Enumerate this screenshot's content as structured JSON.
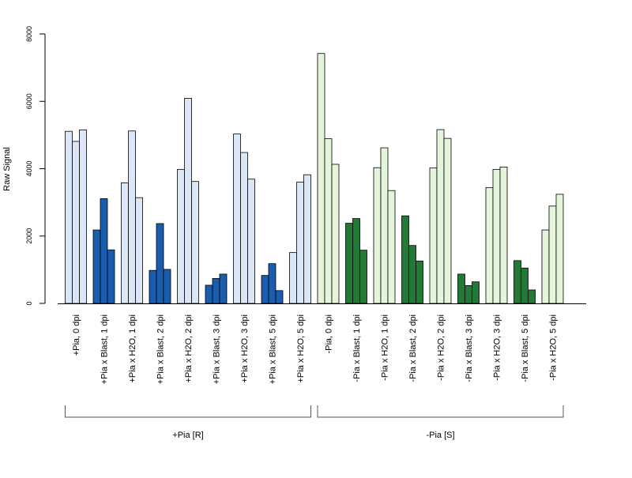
{
  "chart_data": {
    "type": "bar",
    "ylabel": "Raw Signal",
    "xlabel": "",
    "title": "",
    "ylim": [
      0,
      8000
    ],
    "y_ticks": [
      0,
      2000,
      4000,
      6000,
      8000
    ],
    "bars_per_category": 3,
    "categories": [
      "+Pia, 0 dpi",
      "+Pia x Blast, 1 dpi",
      "+Pia x H2O, 1 dpi",
      "+Pia x Blast, 2 dpi",
      "+Pia x H2O, 2 dpi",
      "+Pia x Blast, 3 dpi",
      "+Pia x H2O, 3 dpi",
      "+Pia x Blast, 5 dpi",
      "+Pia x H2O, 5 dpi",
      "-Pia, 0 dpi",
      "-Pia x Blast, 1 dpi",
      "-Pia x H2O, 1 dpi",
      "-Pia x Blast, 2 dpi",
      "-Pia x H2O, 2 dpi",
      "-Pia x Blast, 3 dpi",
      "-Pia x H2O, 3 dpi",
      "-Pia x Blast, 5 dpi",
      "-Pia x H2O, 5 dpi"
    ],
    "values": [
      [
        5110,
        4810,
        5150
      ],
      [
        2180,
        3110,
        1590
      ],
      [
        3580,
        5120,
        3140
      ],
      [
        980,
        2370,
        1010
      ],
      [
        3980,
        6090,
        3620
      ],
      [
        540,
        740,
        870
      ],
      [
        5030,
        4480,
        3690
      ],
      [
        830,
        1180,
        380
      ],
      [
        1510,
        3600,
        3820
      ],
      [
        7420,
        4890,
        4130
      ],
      [
        2380,
        2520,
        1580
      ],
      [
        4030,
        4620,
        3350
      ],
      [
        2600,
        1720,
        1260
      ],
      [
        4020,
        5160,
        4900
      ],
      [
        870,
        530,
        640
      ],
      [
        3440,
        3980,
        4050
      ],
      [
        1270,
        1050,
        400
      ],
      [
        2180,
        2890,
        3240
      ]
    ],
    "bar_colors": [
      "#dbe7f6",
      "#1a5cad",
      "#dbe7f6",
      "#1a5cad",
      "#dbe7f6",
      "#1a5cad",
      "#dbe7f6",
      "#1a5cad",
      "#dbe7f6",
      "#e5f5dc",
      "#237a36",
      "#e5f5dc",
      "#237a36",
      "#e5f5dc",
      "#237a36",
      "#e5f5dc",
      "#237a36",
      "#e5f5dc"
    ],
    "groups": [
      {
        "label": "+Pia [R]",
        "start_category": 0,
        "end_category": 8
      },
      {
        "label": "-Pia [S]",
        "start_category": 9,
        "end_category": 17
      }
    ],
    "grid": false,
    "legend": "none"
  }
}
